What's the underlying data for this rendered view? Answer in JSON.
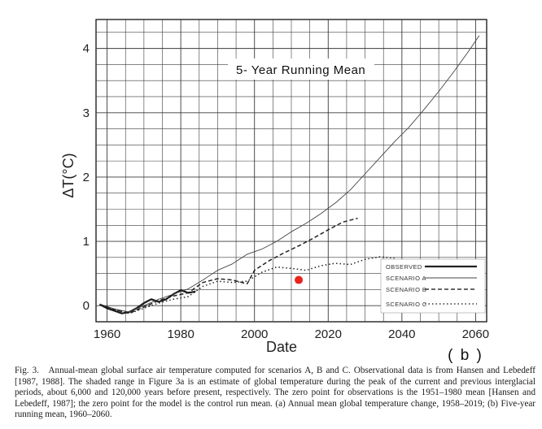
{
  "chart_data": {
    "type": "line",
    "title": "5- Year Running Mean",
    "xlabel": "Date",
    "ylabel": "ΔT(°C)",
    "panel_label": "( b )",
    "xlim": [
      1957,
      2063
    ],
    "ylim": [
      -0.25,
      4.45
    ],
    "x_ticks": [
      1960,
      1980,
      2000,
      2020,
      2040,
      2060
    ],
    "y_ticks": [
      0,
      1,
      2,
      3,
      4
    ],
    "grid": true,
    "legend_position": "bottom-right",
    "series": [
      {
        "name": "OBSERVED",
        "style": "solid-thick",
        "x": [
          1958,
          1960,
          1962,
          1964,
          1966,
          1968,
          1970,
          1972,
          1974,
          1976,
          1978,
          1980,
          1982,
          1984
        ],
        "values": [
          0.02,
          -0.04,
          -0.08,
          -0.12,
          -0.1,
          -0.04,
          0.04,
          0.1,
          0.06,
          0.1,
          0.18,
          0.24,
          0.2,
          0.22
        ]
      },
      {
        "name": "SCENARIO A",
        "style": "solid-thin",
        "x": [
          1958,
          1962,
          1966,
          1970,
          1974,
          1978,
          1982,
          1986,
          1990,
          1994,
          1998,
          2002,
          2006,
          2010,
          2014,
          2018,
          2022,
          2026,
          2030,
          2034,
          2038,
          2042,
          2046,
          2050,
          2054,
          2058,
          2061
        ],
        "values": [
          0.02,
          -0.05,
          -0.1,
          0.0,
          0.1,
          0.18,
          0.26,
          0.4,
          0.55,
          0.65,
          0.8,
          0.88,
          1.0,
          1.15,
          1.28,
          1.43,
          1.6,
          1.8,
          2.05,
          2.3,
          2.55,
          2.78,
          3.05,
          3.33,
          3.63,
          3.95,
          4.2
        ]
      },
      {
        "name": "SCENARIO B",
        "style": "dashed",
        "x": [
          1958,
          1962,
          1966,
          1970,
          1974,
          1978,
          1982,
          1986,
          1990,
          1994,
          1998,
          2000,
          2004,
          2008,
          2012,
          2016,
          2020,
          2024,
          2028
        ],
        "values": [
          0.02,
          -0.06,
          -0.12,
          -0.02,
          0.08,
          0.15,
          0.2,
          0.36,
          0.42,
          0.4,
          0.34,
          0.55,
          0.7,
          0.82,
          0.93,
          1.05,
          1.18,
          1.3,
          1.36
        ]
      },
      {
        "name": "SCENARIO C",
        "style": "dotted",
        "x": [
          1958,
          1962,
          1966,
          1970,
          1974,
          1978,
          1982,
          1986,
          1990,
          1994,
          1998,
          2002,
          2006,
          2010,
          2014,
          2018,
          2022,
          2026,
          2030,
          2034,
          2038
        ],
        "values": [
          0.02,
          -0.06,
          -0.12,
          -0.04,
          0.04,
          0.1,
          0.14,
          0.3,
          0.38,
          0.36,
          0.38,
          0.52,
          0.6,
          0.58,
          0.55,
          0.62,
          0.66,
          0.64,
          0.72,
          0.76,
          0.74
        ]
      }
    ],
    "annotations": [
      {
        "type": "red-dot",
        "x": 2012,
        "y": 0.4,
        "color": "#e8241c"
      }
    ]
  },
  "caption": {
    "figure_number": "Fig. 3.",
    "text": "Annual-mean global surface air temperature computed for scenarios A, B and C. Observational data is from Hansen and Lebedeff [1987, 1988]. The shaded range in Figure 3a is an estimate of global temperature during the peak of the current and previous interglacial periods, about 6,000 and 120,000 years before present, respectively. The zero point for observations is the 1951–1980 mean [Hansen and Lebedeff, 1987]; the zero point for the model is the control run mean. (a) Annual mean global temperature change, 1958–2019; (b) Five-year running mean, 1960–2060."
  },
  "colors": {
    "ink": "#2a2a2a",
    "grid": "#3a3a3a",
    "dot": "#e8241c"
  }
}
